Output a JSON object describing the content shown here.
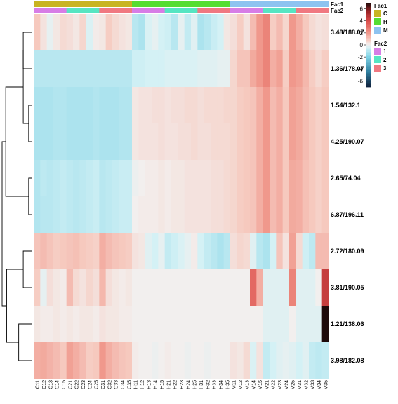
{
  "chart_data": {
    "type": "heatmap",
    "title": "",
    "rows": [
      "3.48/188.07",
      "1.36/178.07",
      "1.54/132.1",
      "4.25/190.07",
      "2.65/74.04",
      "6.87/196.11",
      "2.72/180.09",
      "3.81/190.05",
      "1.21/138.06",
      "3.98/182.08"
    ],
    "columns": [
      "C11",
      "C12",
      "C13",
      "C14",
      "C15",
      "C21",
      "C22",
      "C23",
      "C24",
      "C25",
      "C31",
      "C32",
      "C33",
      "C34",
      "C35",
      "H11",
      "H12",
      "H13",
      "H14",
      "H15",
      "H21",
      "H22",
      "H23",
      "H24",
      "H25",
      "H31",
      "H32",
      "H33",
      "H34",
      "H35",
      "M11",
      "M12",
      "M13",
      "M14",
      "M15",
      "M21",
      "M22",
      "M23",
      "M24",
      "M25",
      "M31",
      "M32",
      "M33",
      "M34",
      "M35"
    ],
    "column_annotations": {
      "Fac1": [
        "C",
        "C",
        "C",
        "C",
        "C",
        "C",
        "C",
        "C",
        "C",
        "C",
        "C",
        "C",
        "C",
        "C",
        "C",
        "H",
        "H",
        "H",
        "H",
        "H",
        "H",
        "H",
        "H",
        "H",
        "H",
        "H",
        "H",
        "H",
        "H",
        "H",
        "M",
        "M",
        "M",
        "M",
        "M",
        "M",
        "M",
        "M",
        "M",
        "M",
        "M",
        "M",
        "M",
        "M",
        "M"
      ],
      "Fac2": [
        "1",
        "1",
        "1",
        "1",
        "1",
        "2",
        "2",
        "2",
        "2",
        "2",
        "3",
        "3",
        "3",
        "3",
        "3",
        "1",
        "1",
        "1",
        "1",
        "1",
        "2",
        "2",
        "2",
        "2",
        "2",
        "3",
        "3",
        "3",
        "3",
        "3",
        "1",
        "1",
        "1",
        "1",
        "1",
        "2",
        "2",
        "2",
        "2",
        "2",
        "3",
        "3",
        "3",
        "3",
        "3"
      ]
    },
    "annotation_names": [
      "Fac1",
      "Fac2"
    ],
    "values": [
      [
        0.9,
        0.3,
        -0.2,
        0.2,
        0.5,
        0.4,
        0.2,
        0.6,
        -0.4,
        0.1,
        0.2,
        0.8,
        0.5,
        0.3,
        0.2,
        -1.0,
        -1.2,
        -0.4,
        -0.2,
        -0.5,
        -0.6,
        -1.0,
        -0.2,
        -0.8,
        -0.3,
        -1.2,
        -1.0,
        -0.7,
        -0.5,
        0.2,
        0.4,
        0.8,
        0.3,
        1.2,
        2.0,
        2.5,
        0.8,
        1.2,
        0.6,
        2.0,
        1.5,
        0.9,
        0.5,
        0.3,
        0.4
      ],
      [
        -1.0,
        -1.0,
        -1.0,
        -1.0,
        -1.0,
        -1.0,
        -1.0,
        -1.0,
        -1.0,
        -1.0,
        -1.0,
        -1.0,
        -1.0,
        -1.0,
        -1.0,
        -0.6,
        -0.6,
        -0.5,
        -0.5,
        -0.5,
        -0.4,
        -0.4,
        -0.4,
        -0.4,
        -0.4,
        -0.3,
        -0.3,
        -0.3,
        -0.2,
        -0.2,
        0.6,
        1.0,
        1.0,
        1.6,
        2.0,
        2.5,
        1.5,
        1.8,
        0.8,
        2.0,
        1.8,
        1.3,
        0.8,
        0.5,
        0.8
      ],
      [
        -1.2,
        -1.2,
        -1.2,
        -1.1,
        -1.1,
        -1.2,
        -1.2,
        -1.2,
        -1.2,
        -1.1,
        -1.2,
        -1.2,
        -1.2,
        -1.1,
        -1.1,
        0.2,
        0.3,
        0.3,
        0.4,
        0.4,
        0.3,
        0.4,
        0.4,
        0.5,
        0.5,
        0.4,
        0.5,
        0.5,
        0.5,
        0.6,
        0.6,
        0.8,
        0.9,
        1.0,
        1.5,
        2.0,
        1.2,
        1.5,
        0.9,
        1.8,
        1.6,
        1.2,
        0.9,
        0.7,
        0.9
      ],
      [
        -1.2,
        -1.2,
        -1.2,
        -1.1,
        -1.1,
        -1.2,
        -1.2,
        -1.2,
        -1.2,
        -1.1,
        -1.2,
        -1.2,
        -1.2,
        -1.1,
        -1.1,
        0.2,
        0.3,
        0.3,
        0.3,
        0.4,
        0.3,
        0.3,
        0.4,
        0.4,
        0.5,
        0.4,
        0.4,
        0.5,
        0.5,
        0.5,
        0.6,
        0.8,
        0.9,
        1.0,
        1.5,
        2.0,
        1.2,
        1.5,
        0.9,
        1.8,
        1.6,
        1.2,
        0.9,
        0.7,
        0.9
      ],
      [
        -1.1,
        -0.9,
        -1.0,
        -0.9,
        -0.8,
        -0.9,
        -1.0,
        -0.9,
        -0.8,
        -0.7,
        -1.0,
        -0.9,
        -0.8,
        -0.7,
        -0.7,
        -0.1,
        0.0,
        0.1,
        0.1,
        0.2,
        0.1,
        0.2,
        0.2,
        0.3,
        0.3,
        0.3,
        0.3,
        0.4,
        0.4,
        0.5,
        0.6,
        0.8,
        0.9,
        1.0,
        1.5,
        2.0,
        1.2,
        1.5,
        0.9,
        1.6,
        1.5,
        1.1,
        0.9,
        0.7,
        0.9
      ],
      [
        -1.1,
        -1.0,
        -1.0,
        -0.9,
        -0.8,
        -0.9,
        -1.0,
        -0.9,
        -0.8,
        -0.7,
        -1.0,
        -0.9,
        -0.8,
        -0.7,
        -0.7,
        0.0,
        0.1,
        0.1,
        0.1,
        0.2,
        0.1,
        0.2,
        0.2,
        0.3,
        0.3,
        0.3,
        0.3,
        0.4,
        0.4,
        0.5,
        0.6,
        0.8,
        0.9,
        1.0,
        1.5,
        2.0,
        1.2,
        1.5,
        0.9,
        1.6,
        1.5,
        1.1,
        0.9,
        0.7,
        0.9
      ],
      [
        1.0,
        1.2,
        1.0,
        0.8,
        0.9,
        1.0,
        1.1,
        0.9,
        0.8,
        0.7,
        1.5,
        1.2,
        1.0,
        0.9,
        0.8,
        0.3,
        0.2,
        -0.3,
        -0.5,
        -0.2,
        -0.8,
        -0.6,
        -0.4,
        -0.2,
        0.1,
        -0.5,
        -0.8,
        -1.0,
        -1.2,
        -1.0,
        0.4,
        0.6,
        0.5,
        -0.3,
        -1.0,
        -1.2,
        -0.5,
        1.0,
        0.3,
        1.8,
        0.5,
        -0.6,
        -0.9,
        1.2,
        1.2
      ],
      [
        0.8,
        -0.2,
        0.4,
        0.2,
        0.1,
        1.2,
        0.5,
        0.3,
        0.6,
        0.4,
        1.3,
        0.4,
        0.2,
        0.1,
        0.2,
        0.0,
        0.0,
        0.0,
        0.0,
        0.0,
        0.0,
        0.0,
        0.0,
        0.0,
        0.0,
        0.0,
        0.0,
        0.0,
        0.0,
        0.0,
        0.0,
        0.0,
        0.0,
        3.2,
        1.5,
        -0.3,
        -0.3,
        -0.3,
        -0.3,
        2.5,
        -0.3,
        -0.3,
        -0.3,
        0.0,
        4.5
      ],
      [
        0.2,
        0.1,
        0.1,
        0.2,
        0.1,
        0.2,
        0.1,
        0.2,
        0.2,
        0.1,
        0.3,
        0.2,
        0.2,
        0.1,
        0.1,
        0.0,
        0.0,
        0.0,
        0.0,
        0.0,
        0.0,
        0.0,
        0.0,
        0.0,
        0.0,
        0.0,
        0.0,
        0.0,
        0.0,
        0.0,
        0.0,
        0.0,
        0.0,
        0.0,
        0.0,
        -0.3,
        -0.3,
        -0.3,
        -0.3,
        0.0,
        -0.3,
        -0.3,
        -0.3,
        -0.3,
        7.0
      ],
      [
        1.5,
        1.6,
        1.4,
        1.2,
        0.9,
        1.8,
        1.5,
        1.2,
        0.8,
        0.9,
        2.0,
        1.5,
        1.2,
        1.0,
        0.9,
        0.1,
        0.0,
        0.0,
        -0.1,
        0.0,
        0.1,
        0.0,
        0.0,
        -0.1,
        0.0,
        0.0,
        -0.1,
        0.0,
        0.0,
        0.0,
        0.3,
        0.2,
        0.5,
        -0.4,
        0.3,
        -0.8,
        -0.5,
        -0.3,
        -0.2,
        -0.3,
        -0.5,
        -0.3,
        -0.8,
        -0.9,
        -0.8
      ]
    ],
    "color_scale": {
      "min": -7,
      "max": 7,
      "ticks": [
        6,
        4,
        2,
        0,
        -2,
        -4,
        -6
      ],
      "stops": [
        {
          "v": -7,
          "c": "#0e1e3a"
        },
        {
          "v": -4.5,
          "c": "#2f7fa0"
        },
        {
          "v": -2,
          "c": "#7fd3e6"
        },
        {
          "v": -0.5,
          "c": "#d4f1f5"
        },
        {
          "v": 0,
          "c": "#f2efee"
        },
        {
          "v": 0.8,
          "c": "#f6cdc3"
        },
        {
          "v": 2.2,
          "c": "#ef8f83"
        },
        {
          "v": 4,
          "c": "#d94a49"
        },
        {
          "v": 5.5,
          "c": "#9c2528"
        },
        {
          "v": 7,
          "c": "#1d0909"
        }
      ]
    },
    "legend": [
      {
        "title": "Fac1",
        "items": [
          {
            "label": "C",
            "color": "#c8b422"
          },
          {
            "label": "H",
            "color": "#55dd32"
          },
          {
            "label": "M",
            "color": "#8dc3f0"
          }
        ]
      },
      {
        "title": "Fac2",
        "items": [
          {
            "label": "1",
            "color": "#d77de6"
          },
          {
            "label": "2",
            "color": "#56e5c2"
          },
          {
            "label": "3",
            "color": "#f07881"
          }
        ]
      }
    ],
    "row_dendrogram": {
      "merges": [
        [
          0,
          1,
          0.3
        ],
        [
          2,
          3,
          0.12
        ],
        [
          4,
          5,
          0.12
        ],
        [
          10,
          11,
          0.3
        ],
        [
          6,
          7,
          0.3
        ],
        [
          8,
          9,
          0.45
        ],
        [
          14,
          15,
          0.85
        ],
        [
          12,
          13,
          0.88
        ],
        [
          16,
          17,
          1.0
        ]
      ]
    },
    "legend_placement": "right"
  }
}
